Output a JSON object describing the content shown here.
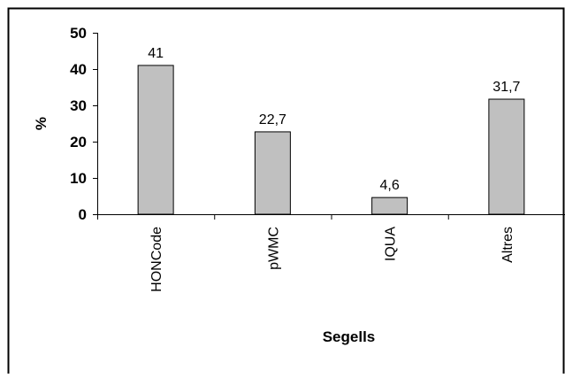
{
  "chart_data": {
    "type": "bar",
    "categories": [
      "HONCode",
      "pWMC",
      "IQUA",
      "Altres"
    ],
    "values": [
      41,
      22.7,
      4.6,
      31.7
    ],
    "data_labels": [
      "41",
      "22,7",
      "4,6",
      "31,7"
    ],
    "ylim": [
      0,
      50
    ],
    "yticks": [
      0,
      10,
      20,
      30,
      40,
      50
    ],
    "ytick_labels": [
      "0",
      "10",
      "20",
      "30",
      "40",
      "50"
    ],
    "xlabel": "Segells",
    "ylabel": "%",
    "grid": false,
    "bar_color": "#c0c0c0",
    "bar_edge_color": "#000000"
  }
}
